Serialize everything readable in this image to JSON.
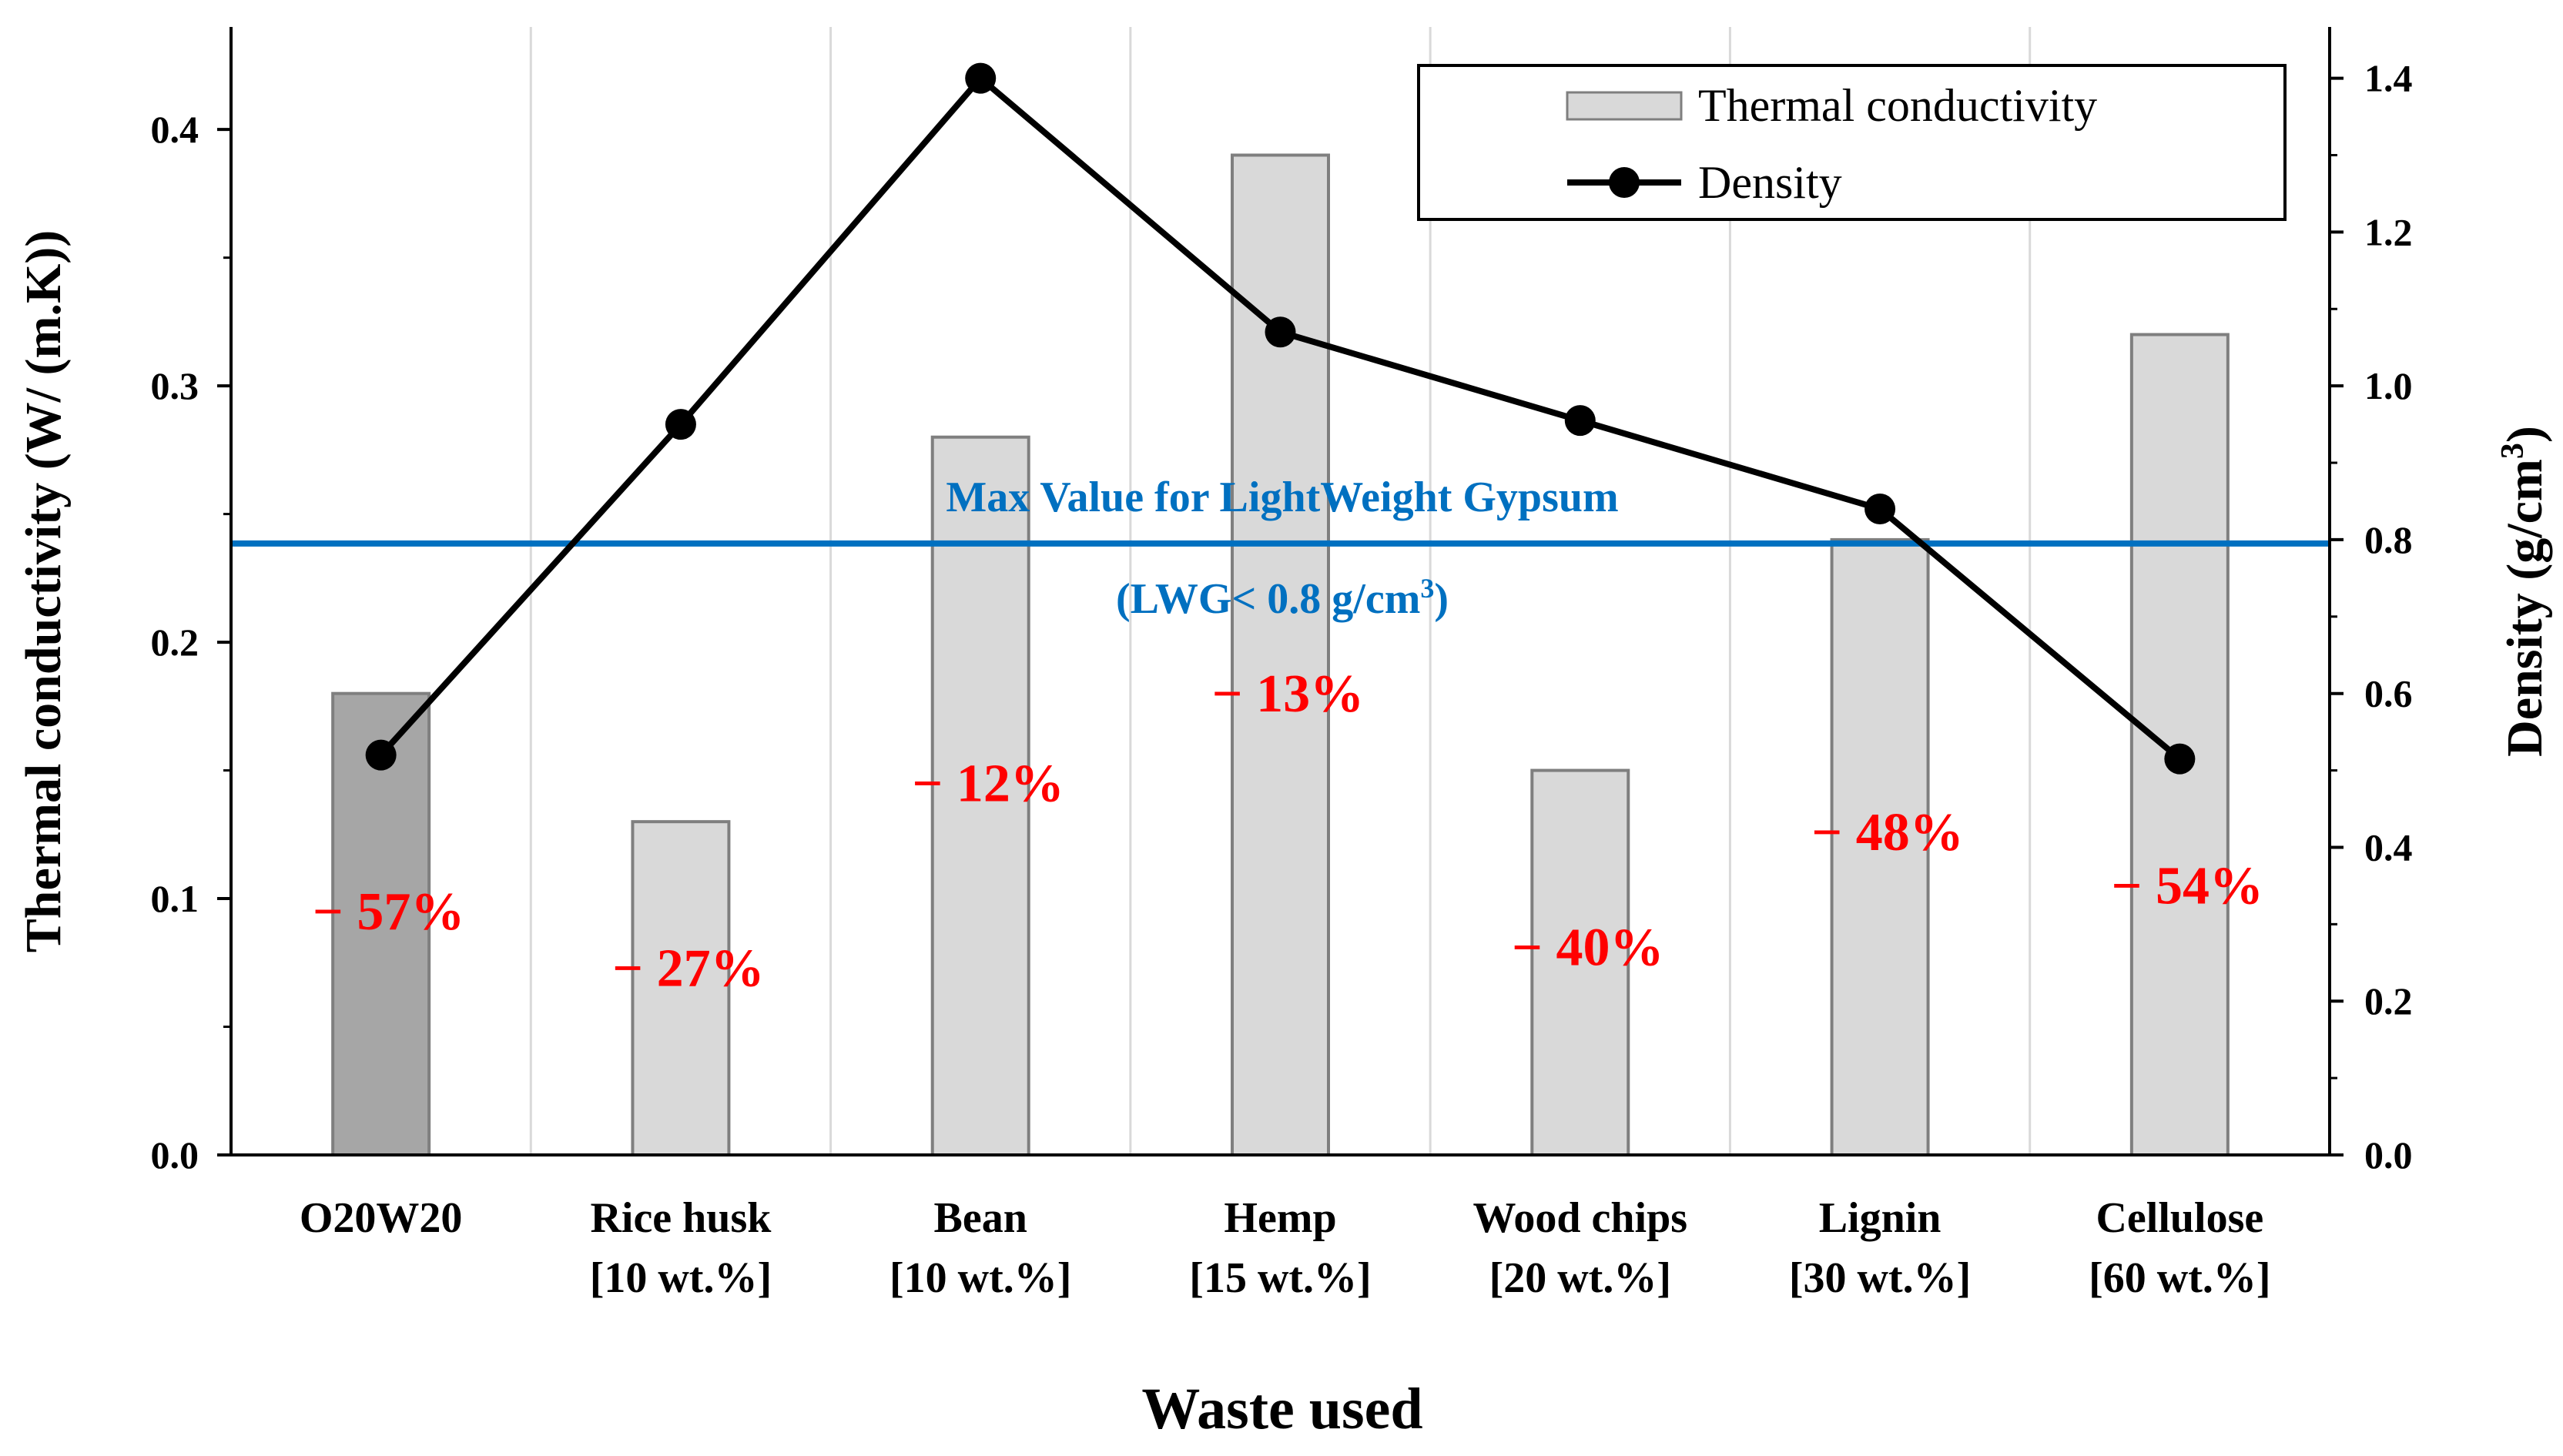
{
  "chart_data": {
    "type": "bar+line",
    "categories": [
      {
        "name": "O20W20",
        "sub": ""
      },
      {
        "name": "Rice husk",
        "sub": "[10 wt.%]"
      },
      {
        "name": "Bean",
        "sub": "[10 wt.%]"
      },
      {
        "name": "Hemp",
        "sub": "[15 wt.%]"
      },
      {
        "name": "Wood chips",
        "sub": "[20 wt.%]"
      },
      {
        "name": "Lignin",
        "sub": "[30 wt.%]"
      },
      {
        "name": "Cellulose",
        "sub": "[60 wt.%]"
      }
    ],
    "series": [
      {
        "name": "Thermal conductivity",
        "type": "bar",
        "axis": "left",
        "values": [
          0.18,
          0.13,
          0.28,
          0.39,
          0.15,
          0.24,
          0.32
        ],
        "colors": [
          "#a6a6a6",
          "#d9d9d9",
          "#d9d9d9",
          "#d9d9d9",
          "#d9d9d9",
          "#d9d9d9",
          "#d9d9d9"
        ]
      },
      {
        "name": "Density",
        "type": "line",
        "axis": "right",
        "values": [
          0.52,
          0.95,
          1.4,
          1.07,
          0.955,
          0.84,
          0.515
        ],
        "color": "#000000"
      }
    ],
    "annotations": [
      "− 57%",
      "− 27%",
      "− 12%",
      "− 13%",
      "− 40%",
      "− 48%",
      "− 54%"
    ],
    "annotation_color": "#ff0000",
    "annotation_heights": [
      0.088,
      0.066,
      0.138,
      0.173,
      0.074,
      0.119,
      0.098
    ],
    "reference_line": {
      "axis": "right",
      "value": 0.795,
      "label_line1": "Max Value for LightWeight Gypsum",
      "label_line2": "(LWG< 0.8 g/cm",
      "label_line2_sup": "3",
      "label_line2_end": ")",
      "color": "#0070c0"
    },
    "y_left": {
      "label": "Thermal conductivity  (W/ (m.K))",
      "ylim": [
        0,
        0.44
      ],
      "ticks": [
        "0.0",
        "0.1",
        "0.2",
        "0.3",
        "0.4"
      ]
    },
    "y_right": {
      "label": "Density (g/cm",
      "label_sup": "3",
      "label_end": ")",
      "ylim": [
        0,
        1.4667
      ],
      "ticks": [
        "0.0",
        "0.2",
        "0.4",
        "0.6",
        "0.8",
        "1.0",
        "1.2",
        "1.4"
      ]
    },
    "xlabel": "Waste used",
    "legend": {
      "position": "top-right",
      "items": [
        "Thermal conductivity",
        "Density"
      ]
    }
  }
}
